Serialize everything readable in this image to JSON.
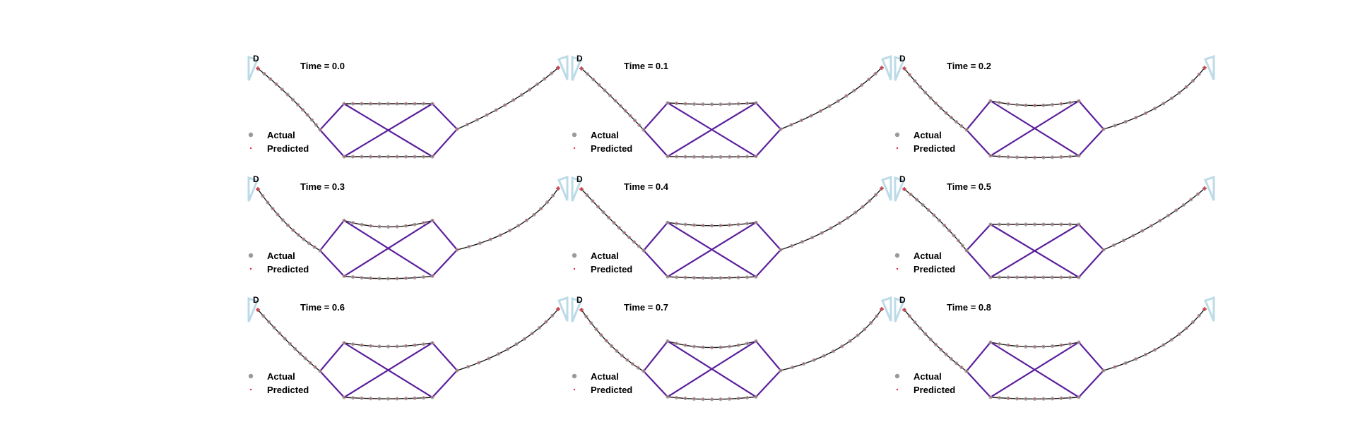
{
  "figure": {
    "anchor_label": "D",
    "legend": {
      "actual": "Actual",
      "predicted": "Predicted"
    },
    "panels": [
      {
        "time_label": "Time = 0.0",
        "sag": 0.0
      },
      {
        "time_label": "Time = 0.1",
        "sag": 0.15
      },
      {
        "time_label": "Time = 0.2",
        "sag": 0.5
      },
      {
        "time_label": "Time = 0.3",
        "sag": 0.7
      },
      {
        "time_label": "Time = 0.4",
        "sag": 0.35
      },
      {
        "time_label": "Time = 0.5",
        "sag": 0.0
      },
      {
        "time_label": "Time = 0.6",
        "sag": 0.4
      },
      {
        "time_label": "Time = 0.7",
        "sag": 0.7
      },
      {
        "time_label": "Time = 0.8",
        "sag": 0.5
      }
    ]
  },
  "colors": {
    "truss": "#5b1f9c",
    "cable": "#1a1a1a",
    "actual_marker": "#9a9a9a",
    "predicted_marker": "#e0293a",
    "support": "#bcdbe8"
  }
}
